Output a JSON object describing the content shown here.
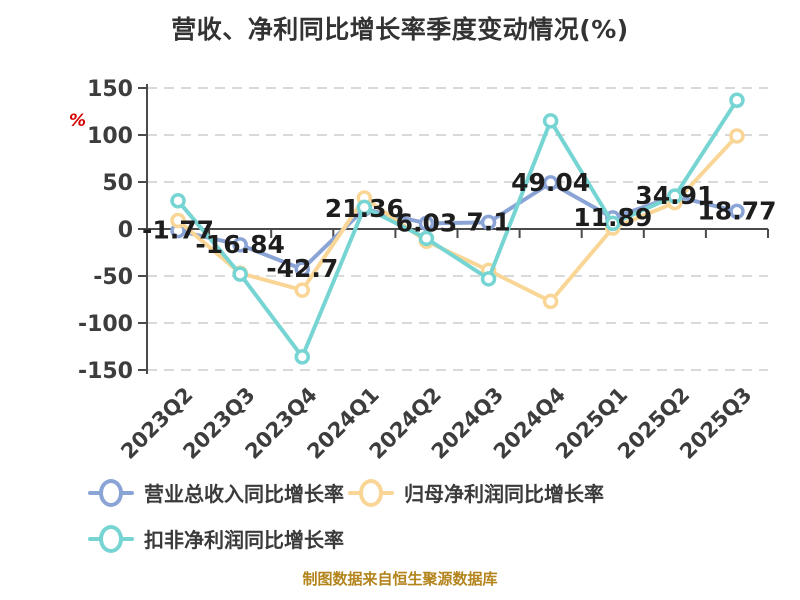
{
  "title": "营收、净利同比增长率季度变动情况(%)",
  "y_axis_unit": "%",
  "source_note": "制图数据来自恒生聚源数据库",
  "colors": {
    "grid": "#d9d9d9",
    "axis": "#4a4a4a",
    "tick_label": "#3d3d3d",
    "data_label": "#1d1d1d",
    "title": "#333333",
    "unit": "#d40000",
    "source": "#b3841c"
  },
  "chart_data": {
    "type": "line",
    "categories": [
      "2023Q2",
      "2023Q3",
      "2023Q4",
      "2024Q1",
      "2024Q2",
      "2024Q3",
      "2024Q4",
      "2025Q1",
      "2025Q2",
      "2025Q3"
    ],
    "series": [
      {
        "name": "营业总收入同比增长率",
        "color": "#8ba4d6",
        "values": [
          -1.77,
          -16.84,
          -42.7,
          21.36,
          6.03,
          7.1,
          49.04,
          11.89,
          34.91,
          18.77
        ],
        "labels": [
          "-1.77",
          "-16.84",
          "-42.7",
          "21.36",
          "6.03",
          "7.1",
          "49.04",
          "11.89",
          "34.91",
          "18.77"
        ]
      },
      {
        "name": "归母净利润同比增长率",
        "color": "#fad696",
        "values": [
          9,
          -47,
          -65,
          33,
          -13,
          -44,
          -77,
          1,
          28,
          99
        ]
      },
      {
        "name": "扣非净利润同比增长率",
        "color": "#76d5d3",
        "values": [
          30,
          -48,
          -136,
          23,
          -10,
          -53,
          115,
          6,
          35,
          137
        ]
      }
    ],
    "ylim": [
      -150,
      150
    ],
    "y_ticks": [
      150,
      100,
      50,
      0,
      -50,
      -100,
      -150
    ],
    "grid": "horizontal-dashed",
    "legend_position": "bottom-left",
    "data_labels_series_index": 0
  }
}
